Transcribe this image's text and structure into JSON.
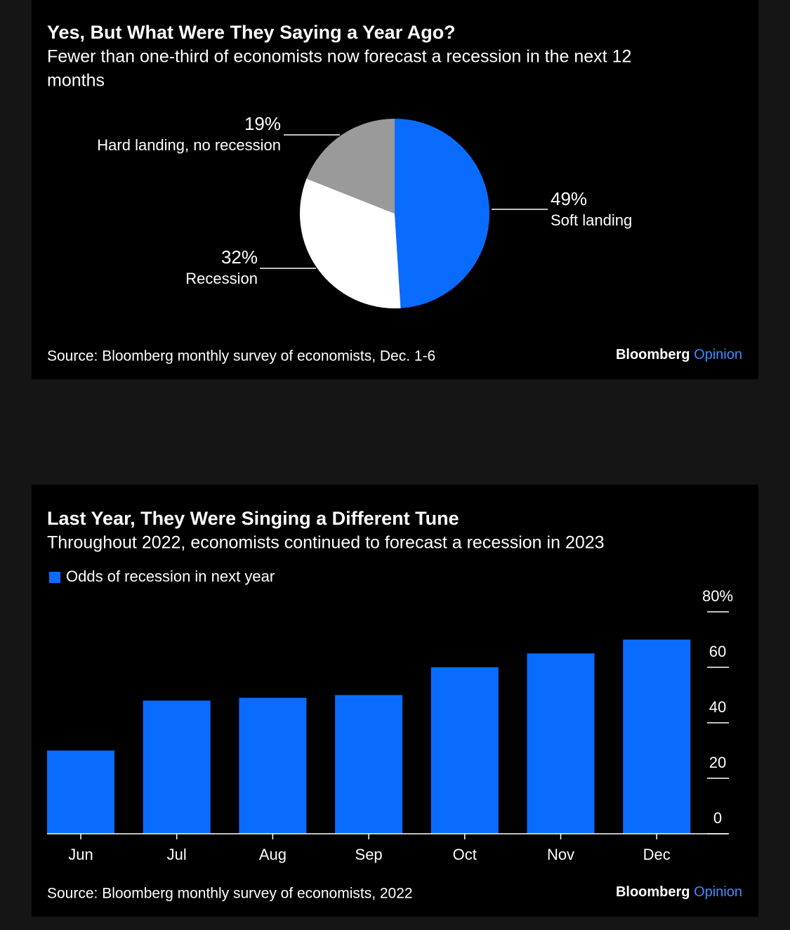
{
  "chart_data": [
    {
      "type": "pie",
      "title": "Yes, But What Were They Saying a Year Ago?",
      "subtitle": [
        "Fewer than one-third of economists now forecast a recession in the next 12",
        "months"
      ],
      "categories": [
        "Soft landing",
        "Recession",
        "Hard landing, no recession"
      ],
      "values": [
        49,
        32,
        19
      ],
      "value_labels": [
        "49%",
        "32%",
        "19%"
      ],
      "colors": [
        "#0a6cff",
        "#ffffff",
        "#9a9a9a"
      ],
      "source": "Source: Bloomberg monthly survey of economists, Dec. 1-6",
      "brand": "Bloomberg",
      "brand_accent": "Opinion"
    },
    {
      "type": "bar",
      "title": "Last Year, They Were Singing a Different Tune",
      "subtitle": [
        "Throughout 2022, economists continued to forecast a recession in 2023"
      ],
      "categories": [
        "Jun",
        "Jul",
        "Aug",
        "Sep",
        "Oct",
        "Nov",
        "Dec"
      ],
      "series": [
        {
          "name": "Odds of recession in next year",
          "color": "#0a6cff",
          "values": [
            30,
            48,
            49,
            50,
            60,
            65,
            70
          ]
        }
      ],
      "ylim": [
        0,
        80
      ],
      "yticks": [
        0,
        20,
        40,
        60,
        {
          "value": 80,
          "label": "80%"
        }
      ],
      "source": "Source: Bloomberg monthly survey of economists, 2022",
      "brand": "Bloomberg",
      "brand_accent": "Opinion"
    }
  ]
}
